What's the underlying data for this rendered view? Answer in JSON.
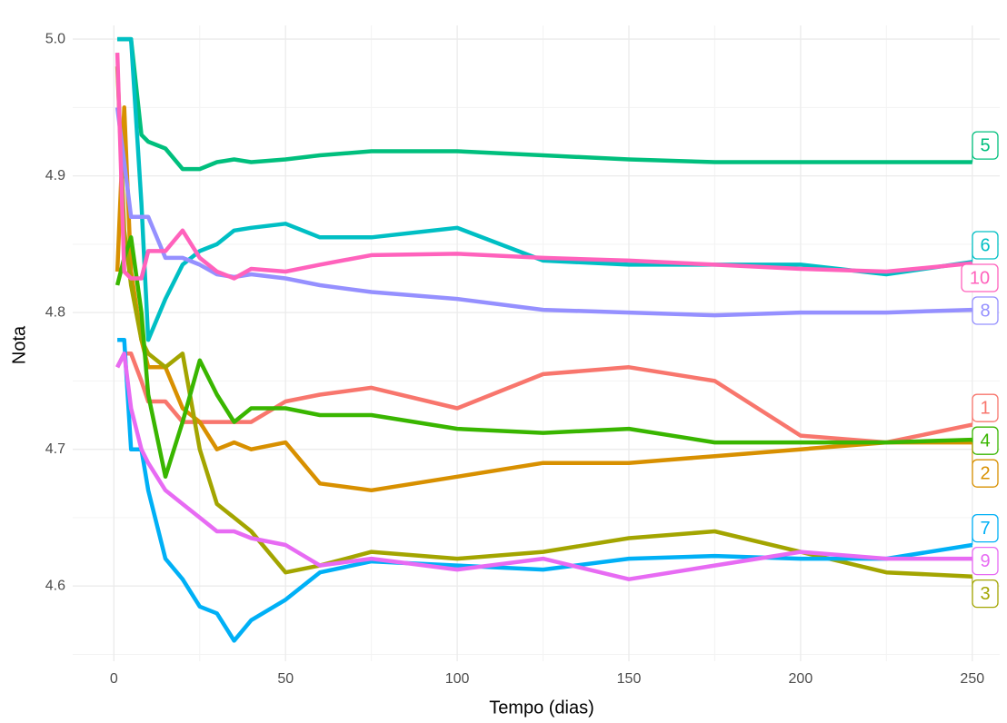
{
  "chart_data": {
    "type": "line",
    "xlabel": "Tempo (dias)",
    "ylabel": "Nota",
    "x": [
      1,
      3,
      5,
      8,
      10,
      15,
      20,
      25,
      30,
      35,
      40,
      50,
      60,
      75,
      100,
      125,
      150,
      175,
      200,
      225,
      250
    ],
    "xlim": [
      -12,
      258
    ],
    "xticks": [
      0,
      50,
      100,
      150,
      200,
      250
    ],
    "ylim": [
      4.545,
      5.01
    ],
    "yticks": [
      4.6,
      4.7,
      4.8,
      4.9,
      {
        "value": 5,
        "label": "5.0"
      }
    ],
    "grid": true,
    "series": [
      {
        "name": "1",
        "color": "#F8766D",
        "values": [
          4.76,
          4.77,
          4.77,
          4.75,
          4.735,
          4.735,
          4.72,
          4.72,
          4.72,
          4.72,
          4.72,
          4.735,
          4.74,
          4.745,
          4.73,
          4.755,
          4.76,
          4.75,
          4.71,
          4.705,
          4.718
        ]
      },
      {
        "name": "2",
        "color": "#D89000",
        "values": [
          4.83,
          4.95,
          4.83,
          4.78,
          4.76,
          4.76,
          4.73,
          4.72,
          4.7,
          4.705,
          4.7,
          4.705,
          4.675,
          4.67,
          4.68,
          4.69,
          4.69,
          4.695,
          4.7,
          4.705,
          4.705
        ]
      },
      {
        "name": "3",
        "color": "#A3A500",
        "values": [
          4.98,
          4.86,
          4.82,
          4.78,
          4.77,
          4.76,
          4.77,
          4.7,
          4.66,
          4.65,
          4.64,
          4.61,
          4.615,
          4.625,
          4.62,
          4.625,
          4.635,
          4.64,
          4.625,
          4.61,
          4.607
        ]
      },
      {
        "name": "4",
        "color": "#39B600",
        "values": [
          4.82,
          4.84,
          4.855,
          4.8,
          4.74,
          4.68,
          4.72,
          4.765,
          4.74,
          4.72,
          4.73,
          4.73,
          4.725,
          4.725,
          4.715,
          4.712,
          4.715,
          4.705,
          4.705,
          4.705,
          4.707
        ]
      },
      {
        "name": "5",
        "color": "#00BF7D",
        "values": [
          5.0,
          5.0,
          5.0,
          4.93,
          4.925,
          4.92,
          4.905,
          4.905,
          4.91,
          4.912,
          4.91,
          4.912,
          4.915,
          4.918,
          4.918,
          4.915,
          4.912,
          4.91,
          4.91,
          4.91,
          4.91
        ]
      },
      {
        "name": "6",
        "color": "#00BFC4",
        "values": [
          5.0,
          5.0,
          5.0,
          4.88,
          4.78,
          4.81,
          4.835,
          4.845,
          4.85,
          4.86,
          4.862,
          4.865,
          4.855,
          4.855,
          4.862,
          4.838,
          4.835,
          4.835,
          4.835,
          4.828,
          4.837
        ]
      },
      {
        "name": "7",
        "color": "#00B0F6",
        "values": [
          4.78,
          4.78,
          4.7,
          4.7,
          4.67,
          4.62,
          4.605,
          4.585,
          4.58,
          4.56,
          4.575,
          4.59,
          4.61,
          4.618,
          4.615,
          4.612,
          4.62,
          4.622,
          4.62,
          4.62,
          4.63
        ]
      },
      {
        "name": "8",
        "color": "#9590FF",
        "values": [
          4.95,
          4.91,
          4.87,
          4.87,
          4.87,
          4.84,
          4.84,
          4.835,
          4.828,
          4.826,
          4.828,
          4.825,
          4.82,
          4.815,
          4.81,
          4.802,
          4.8,
          4.798,
          4.8,
          4.8,
          4.802
        ]
      },
      {
        "name": "9",
        "color": "#E76BF3",
        "values": [
          4.76,
          4.77,
          4.73,
          4.7,
          4.69,
          4.67,
          4.66,
          4.65,
          4.64,
          4.64,
          4.635,
          4.63,
          4.615,
          4.62,
          4.612,
          4.62,
          4.605,
          4.615,
          4.625,
          4.62,
          4.62
        ]
      },
      {
        "name": "10",
        "color": "#FF62BC",
        "values": [
          4.99,
          4.83,
          4.825,
          4.825,
          4.845,
          4.845,
          4.86,
          4.84,
          4.83,
          4.825,
          4.832,
          4.83,
          4.835,
          4.842,
          4.843,
          4.84,
          4.838,
          4.835,
          4.832,
          4.83,
          4.836
        ]
      }
    ]
  }
}
